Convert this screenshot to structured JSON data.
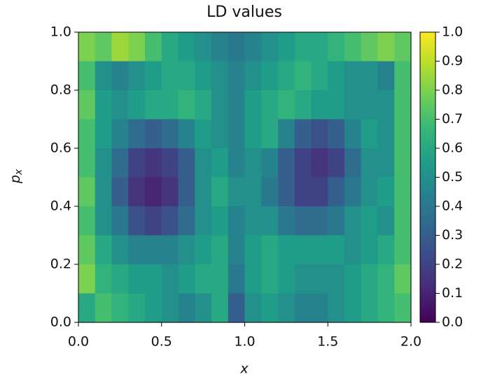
{
  "chart_data": {
    "type": "heatmap",
    "title": "LD values",
    "xlabel": "x",
    "ylabel": {
      "text": "p",
      "subscript": "x"
    },
    "xlim": [
      0,
      2
    ],
    "ylim": [
      0,
      1
    ],
    "xticks": [
      {
        "value": 0,
        "label": "0.0"
      },
      {
        "value": 0.5,
        "label": "0.5"
      },
      {
        "value": 1,
        "label": "1.0"
      },
      {
        "value": 1.5,
        "label": "1.5"
      },
      {
        "value": 2,
        "label": "2.0"
      }
    ],
    "yticks": [
      {
        "value": 0,
        "label": "0.0"
      },
      {
        "value": 0.2,
        "label": "0.2"
      },
      {
        "value": 0.4,
        "label": "0.4"
      },
      {
        "value": 0.6,
        "label": "0.6"
      },
      {
        "value": 0.8,
        "label": "0.8"
      },
      {
        "value": 1,
        "label": "1.0"
      }
    ],
    "clim": [
      0,
      1
    ],
    "cticks": [
      {
        "value": 0,
        "label": "0.0"
      },
      {
        "value": 0.1,
        "label": "0.1"
      },
      {
        "value": 0.2,
        "label": "0.2"
      },
      {
        "value": 0.3,
        "label": "0.3"
      },
      {
        "value": 0.4,
        "label": "0.4"
      },
      {
        "value": 0.5,
        "label": "0.5"
      },
      {
        "value": 0.6,
        "label": "0.6"
      },
      {
        "value": 0.7,
        "label": "0.7"
      },
      {
        "value": 0.8,
        "label": "0.8"
      },
      {
        "value": 0.9,
        "label": "0.9"
      },
      {
        "value": 1,
        "label": "1.0"
      }
    ],
    "colormap": [
      "#440154",
      "#482878",
      "#3e4989",
      "#31688e",
      "#26828e",
      "#1f9e89",
      "#35b779",
      "#6ece58",
      "#b5de2b",
      "#fde725"
    ],
    "values": [
      [
        0.8,
        0.75,
        0.85,
        0.8,
        0.7,
        0.6,
        0.55,
        0.5,
        0.45,
        0.4,
        0.45,
        0.5,
        0.55,
        0.6,
        0.6,
        0.65,
        0.7,
        0.75,
        0.8,
        0.75
      ],
      [
        0.7,
        0.5,
        0.45,
        0.5,
        0.55,
        0.6,
        0.6,
        0.55,
        0.5,
        0.45,
        0.5,
        0.55,
        0.6,
        0.65,
        0.6,
        0.55,
        0.5,
        0.5,
        0.45,
        0.7
      ],
      [
        0.75,
        0.55,
        0.5,
        0.55,
        0.6,
        0.6,
        0.65,
        0.6,
        0.5,
        0.45,
        0.55,
        0.6,
        0.65,
        0.6,
        0.55,
        0.55,
        0.5,
        0.5,
        0.5,
        0.7
      ],
      [
        0.7,
        0.55,
        0.45,
        0.35,
        0.3,
        0.35,
        0.45,
        0.55,
        0.5,
        0.45,
        0.55,
        0.6,
        0.45,
        0.3,
        0.25,
        0.3,
        0.45,
        0.55,
        0.5,
        0.7
      ],
      [
        0.7,
        0.5,
        0.35,
        0.2,
        0.15,
        0.2,
        0.3,
        0.5,
        0.55,
        0.45,
        0.5,
        0.45,
        0.3,
        0.2,
        0.15,
        0.2,
        0.35,
        0.5,
        0.5,
        0.7
      ],
      [
        0.75,
        0.5,
        0.3,
        0.15,
        0.1,
        0.15,
        0.3,
        0.5,
        0.6,
        0.5,
        0.5,
        0.4,
        0.3,
        0.2,
        0.2,
        0.3,
        0.4,
        0.5,
        0.55,
        0.7
      ],
      [
        0.7,
        0.5,
        0.4,
        0.25,
        0.2,
        0.25,
        0.35,
        0.5,
        0.55,
        0.45,
        0.5,
        0.5,
        0.4,
        0.35,
        0.35,
        0.4,
        0.5,
        0.55,
        0.5,
        0.7
      ],
      [
        0.75,
        0.6,
        0.5,
        0.45,
        0.45,
        0.45,
        0.5,
        0.55,
        0.6,
        0.45,
        0.55,
        0.6,
        0.55,
        0.55,
        0.55,
        0.55,
        0.5,
        0.55,
        0.6,
        0.7
      ],
      [
        0.8,
        0.65,
        0.6,
        0.55,
        0.55,
        0.5,
        0.55,
        0.6,
        0.6,
        0.4,
        0.55,
        0.6,
        0.55,
        0.5,
        0.5,
        0.5,
        0.55,
        0.6,
        0.65,
        0.75
      ],
      [
        0.6,
        0.7,
        0.65,
        0.6,
        0.55,
        0.5,
        0.45,
        0.5,
        0.6,
        0.3,
        0.5,
        0.55,
        0.5,
        0.45,
        0.45,
        0.5,
        0.55,
        0.6,
        0.65,
        0.7
      ]
    ]
  }
}
